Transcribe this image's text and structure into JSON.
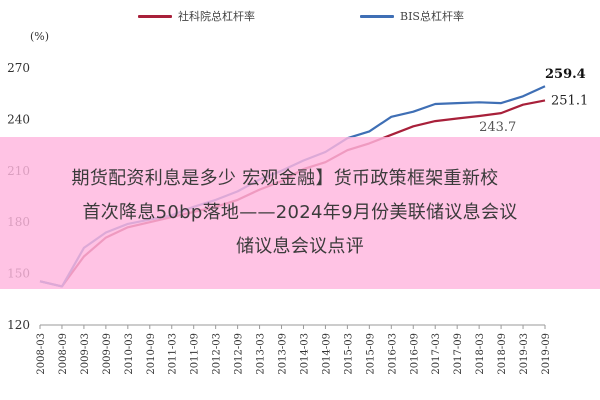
{
  "chart_data": {
    "type": "line",
    "ylabel": "(%)",
    "ylim": [
      120,
      270
    ],
    "yticks": [
      120,
      150,
      180,
      210,
      240,
      270
    ],
    "x": [
      "2008-03",
      "2008-09",
      "2009-03",
      "2009-09",
      "2010-03",
      "2010-09",
      "2011-03",
      "2011-09",
      "2012-03",
      "2012-09",
      "2013-03",
      "2013-09",
      "2014-03",
      "2014-09",
      "2015-03",
      "2015-09",
      "2016-03",
      "2016-09",
      "2017-03",
      "2017-09",
      "2018-03",
      "2018-09",
      "2019-03",
      "2019-09"
    ],
    "series": [
      {
        "name": "社科院总杠杆率",
        "color": "#a8203a",
        "values": [
          145.5,
          142.5,
          160,
          171,
          177,
          180,
          183,
          186,
          189,
          193,
          199,
          204,
          211,
          215,
          222,
          226,
          231,
          236,
          239,
          240.5,
          242,
          243.7,
          248.6,
          251.1
        ]
      },
      {
        "name": "BIS总杠杆率",
        "color": "#3f6fb5",
        "values": [
          145.5,
          142.5,
          165,
          174,
          179,
          181.5,
          184,
          189,
          193,
          198,
          205,
          210,
          216,
          221,
          229,
          233,
          241.5,
          244.5,
          249,
          249.5,
          250,
          249.5,
          253.5,
          259.4
        ]
      }
    ],
    "annotations": [
      {
        "text": "259.4",
        "x": "2019-09",
        "y": 259.4
      },
      {
        "text": "251.1",
        "x": "2019-09",
        "y": 251.1
      },
      {
        "text": "243.7",
        "x": "2018-09",
        "y": 243.7
      }
    ]
  },
  "overlay": {
    "line1": "期货配资利息是多少 宏观金融】货币政策框架重新校",
    "line2": "首次降息50bp落地——2024年9月份美联储议息会议",
    "line3": "储议息会议点评"
  }
}
